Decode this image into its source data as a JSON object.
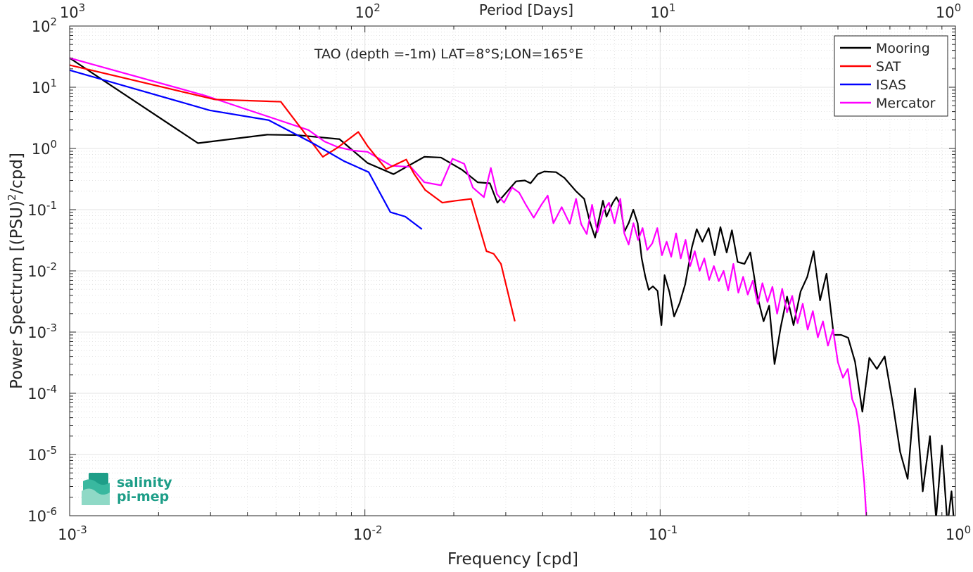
{
  "chart_data": {
    "type": "line",
    "title": "TAO (depth =-1m) LAT=8°S;LON=165°E",
    "xlabel": "Frequency [cpd]",
    "ylabel": "Power Spectrum [(PSU)",
    "ylabel_sup": "2",
    "ylabel_tail": "/cpd]",
    "top_xlabel": "Period [Days]",
    "xscale": "log",
    "yscale": "log",
    "xlim": [
      0.001,
      1
    ],
    "ylim": [
      1e-06,
      100
    ],
    "x_ticks": [
      {
        "value": 0.001,
        "base": "10",
        "exp": "-3"
      },
      {
        "value": 0.01,
        "base": "10",
        "exp": "-2"
      },
      {
        "value": 0.1,
        "base": "10",
        "exp": "-1"
      },
      {
        "value": 1,
        "base": "10",
        "exp": "0"
      }
    ],
    "y_ticks": [
      {
        "value": 100,
        "base": "10",
        "exp": "2"
      },
      {
        "value": 10,
        "base": "10",
        "exp": "1"
      },
      {
        "value": 1,
        "base": "10",
        "exp": "0"
      },
      {
        "value": 0.1,
        "base": "10",
        "exp": "-1"
      },
      {
        "value": 0.01,
        "base": "10",
        "exp": "-2"
      },
      {
        "value": 0.001,
        "base": "10",
        "exp": "-3"
      },
      {
        "value": 0.0001,
        "base": "10",
        "exp": "-4"
      },
      {
        "value": 1e-05,
        "base": "10",
        "exp": "-5"
      },
      {
        "value": 1e-06,
        "base": "10",
        "exp": "-6"
      }
    ],
    "top_ticks": [
      {
        "value": 0.001,
        "base": "10",
        "exp": "3"
      },
      {
        "value": 0.01,
        "base": "10",
        "exp": "2"
      },
      {
        "value": 0.1,
        "base": "10",
        "exp": "1"
      },
      {
        "value": 1,
        "base": "10",
        "exp": "0"
      }
    ],
    "grid": true,
    "legend_position": "top-right",
    "logo": {
      "line1": "salinity",
      "line2": "pi-mep"
    },
    "series": [
      {
        "name": "Mooring",
        "color": "#000000",
        "points": [
          [
            0.001,
            30
          ],
          [
            0.00272,
            1.22
          ],
          [
            0.00467,
            1.68
          ],
          [
            0.0059,
            1.65
          ],
          [
            0.0082,
            1.42
          ],
          [
            0.0102,
            0.58
          ],
          [
            0.0125,
            0.38
          ],
          [
            0.0159,
            0.73
          ],
          [
            0.0181,
            0.71
          ],
          [
            0.0213,
            0.45
          ],
          [
            0.0241,
            0.28
          ],
          [
            0.0265,
            0.27
          ],
          [
            0.0281,
            0.13
          ],
          [
            0.0325,
            0.29
          ],
          [
            0.0348,
            0.3
          ],
          [
            0.0364,
            0.27
          ],
          [
            0.0385,
            0.38
          ],
          [
            0.0405,
            0.42
          ],
          [
            0.0444,
            0.41
          ],
          [
            0.0474,
            0.33
          ],
          [
            0.0519,
            0.2
          ],
          [
            0.0553,
            0.15
          ],
          [
            0.0577,
            0.065
          ],
          [
            0.0602,
            0.035
          ],
          [
            0.064,
            0.14
          ],
          [
            0.0658,
            0.077
          ],
          [
            0.0691,
            0.13
          ],
          [
            0.0711,
            0.16
          ],
          [
            0.0733,
            0.12
          ],
          [
            0.0757,
            0.044
          ],
          [
            0.0782,
            0.06
          ],
          [
            0.0811,
            0.1
          ],
          [
            0.0839,
            0.06
          ],
          [
            0.0866,
            0.016
          ],
          [
            0.089,
            0.0082
          ],
          [
            0.0915,
            0.0049
          ],
          [
            0.0945,
            0.0056
          ],
          [
            0.098,
            0.0047
          ],
          [
            0.101,
            0.0013
          ],
          [
            0.1035,
            0.0085
          ],
          [
            0.1075,
            0.0045
          ],
          [
            0.1115,
            0.0018
          ],
          [
            0.1165,
            0.003
          ],
          [
            0.1215,
            0.006
          ],
          [
            0.128,
            0.024
          ],
          [
            0.133,
            0.048
          ],
          [
            0.139,
            0.03
          ],
          [
            0.146,
            0.05
          ],
          [
            0.153,
            0.018
          ],
          [
            0.16,
            0.052
          ],
          [
            0.168,
            0.02
          ],
          [
            0.175,
            0.046
          ],
          [
            0.183,
            0.014
          ],
          [
            0.193,
            0.013
          ],
          [
            0.202,
            0.02
          ],
          [
            0.213,
            0.004
          ],
          [
            0.224,
            0.0015
          ],
          [
            0.234,
            0.0027
          ],
          [
            0.244,
            0.0003
          ],
          [
            0.256,
            0.0012
          ],
          [
            0.269,
            0.0038
          ],
          [
            0.283,
            0.0013
          ],
          [
            0.299,
            0.0046
          ],
          [
            0.315,
            0.008
          ],
          [
            0.331,
            0.021
          ],
          [
            0.348,
            0.0033
          ],
          [
            0.366,
            0.009
          ],
          [
            0.387,
            0.0009
          ],
          [
            0.41,
            0.0009
          ],
          [
            0.433,
            0.00081
          ],
          [
            0.457,
            0.00033
          ],
          [
            0.484,
            5e-05
          ],
          [
            0.511,
            0.00038
          ],
          [
            0.542,
            0.00025
          ],
          [
            0.576,
            0.0004
          ],
          [
            0.613,
            7e-05
          ],
          [
            0.65,
            1.1e-05
          ],
          [
            0.689,
            4e-06
          ],
          [
            0.73,
            0.00012
          ],
          [
            0.775,
            2.5e-06
          ],
          [
            0.82,
            2e-05
          ],
          [
            0.86,
            9e-07
          ],
          [
            0.9,
            1.4e-05
          ],
          [
            0.94,
            7e-07
          ],
          [
            0.97,
            2.5e-06
          ],
          [
            1,
            4e-07
          ]
        ]
      },
      {
        "name": "SAT",
        "color": "#ff0000",
        "points": [
          [
            0.001,
            23
          ],
          [
            0.00311,
            6.3
          ],
          [
            0.00519,
            5.8
          ],
          [
            0.0072,
            0.73
          ],
          [
            0.0081,
            1.04
          ],
          [
            0.0095,
            1.86
          ],
          [
            0.0102,
            1.1
          ],
          [
            0.0118,
            0.46
          ],
          [
            0.0138,
            0.66
          ],
          [
            0.0147,
            0.38
          ],
          [
            0.016,
            0.21
          ],
          [
            0.0183,
            0.13
          ],
          [
            0.0203,
            0.14
          ],
          [
            0.0229,
            0.15
          ],
          [
            0.0258,
            0.021
          ],
          [
            0.0273,
            0.019
          ],
          [
            0.0289,
            0.013
          ],
          [
            0.0322,
            0.0015
          ]
        ]
      },
      {
        "name": "ISAS",
        "color": "#0000ff",
        "points": [
          [
            0.001,
            19
          ],
          [
            0.00298,
            4.2
          ],
          [
            0.00472,
            2.9
          ],
          [
            0.0067,
            1.2
          ],
          [
            0.0085,
            0.62
          ],
          [
            0.0103,
            0.41
          ],
          [
            0.0122,
            0.091
          ],
          [
            0.0137,
            0.077
          ],
          [
            0.0156,
            0.048
          ]
        ]
      },
      {
        "name": "Mercator",
        "color": "#ff00ff",
        "points": [
          [
            0.001,
            30
          ],
          [
            0.00288,
            7.3
          ],
          [
            0.00644,
            2
          ],
          [
            0.0073,
            1.3
          ],
          [
            0.0081,
            1.05
          ],
          [
            0.0092,
            0.92
          ],
          [
            0.0102,
            0.88
          ],
          [
            0.0123,
            0.52
          ],
          [
            0.0143,
            0.5
          ],
          [
            0.0159,
            0.28
          ],
          [
            0.0181,
            0.25
          ],
          [
            0.0198,
            0.68
          ],
          [
            0.0217,
            0.56
          ],
          [
            0.0232,
            0.23
          ],
          [
            0.0253,
            0.16
          ],
          [
            0.0267,
            0.48
          ],
          [
            0.028,
            0.18
          ],
          [
            0.0296,
            0.13
          ],
          [
            0.0315,
            0.23
          ],
          [
            0.0333,
            0.19
          ],
          [
            0.0351,
            0.12
          ],
          [
            0.0373,
            0.074
          ],
          [
            0.0396,
            0.12
          ],
          [
            0.0416,
            0.17
          ],
          [
            0.0435,
            0.06
          ],
          [
            0.0464,
            0.11
          ],
          [
            0.0494,
            0.059
          ],
          [
            0.0519,
            0.15
          ],
          [
            0.054,
            0.058
          ],
          [
            0.0564,
            0.04
          ],
          [
            0.0588,
            0.12
          ],
          [
            0.0613,
            0.043
          ],
          [
            0.0642,
            0.095
          ],
          [
            0.0671,
            0.13
          ],
          [
            0.0701,
            0.06
          ],
          [
            0.0733,
            0.15
          ],
          [
            0.0756,
            0.041
          ],
          [
            0.0782,
            0.027
          ],
          [
            0.0812,
            0.06
          ],
          [
            0.0842,
            0.032
          ],
          [
            0.0872,
            0.05
          ],
          [
            0.0904,
            0.022
          ],
          [
            0.094,
            0.028
          ],
          [
            0.0978,
            0.05
          ],
          [
            0.1014,
            0.018
          ],
          [
            0.1052,
            0.03
          ],
          [
            0.109,
            0.017
          ],
          [
            0.1132,
            0.041
          ],
          [
            0.1174,
            0.016
          ],
          [
            0.1219,
            0.032
          ],
          [
            0.1264,
            0.012
          ],
          [
            0.131,
            0.021
          ],
          [
            0.136,
            0.01
          ],
          [
            0.1411,
            0.016
          ],
          [
            0.1465,
            0.0071
          ],
          [
            0.152,
            0.012
          ],
          [
            0.158,
            0.0068
          ],
          [
            0.164,
            0.01
          ],
          [
            0.17,
            0.0048
          ],
          [
            0.177,
            0.013
          ],
          [
            0.184,
            0.0044
          ],
          [
            0.191,
            0.008
          ],
          [
            0.198,
            0.0041
          ],
          [
            0.206,
            0.0069
          ],
          [
            0.214,
            0.0029
          ],
          [
            0.222,
            0.0063
          ],
          [
            0.231,
            0.0031
          ],
          [
            0.24,
            0.0055
          ],
          [
            0.249,
            0.002
          ],
          [
            0.259,
            0.0051
          ],
          [
            0.269,
            0.0021
          ],
          [
            0.28,
            0.0039
          ],
          [
            0.292,
            0.0014
          ],
          [
            0.304,
            0.0029
          ],
          [
            0.316,
            0.0011
          ],
          [
            0.329,
            0.0022
          ],
          [
            0.342,
            0.00082
          ],
          [
            0.356,
            0.0015
          ],
          [
            0.37,
            0.0006
          ],
          [
            0.385,
            0.0011
          ],
          [
            0.4,
            0.00032
          ],
          [
            0.416,
            0.00018
          ],
          [
            0.432,
            0.00025
          ],
          [
            0.447,
            8e-05
          ],
          [
            0.461,
            5.5e-05
          ],
          [
            0.472,
            2.8e-05
          ],
          [
            0.482,
            9e-06
          ],
          [
            0.491,
            3.5e-06
          ],
          [
            0.499,
            1e-06
          ]
        ]
      }
    ]
  }
}
